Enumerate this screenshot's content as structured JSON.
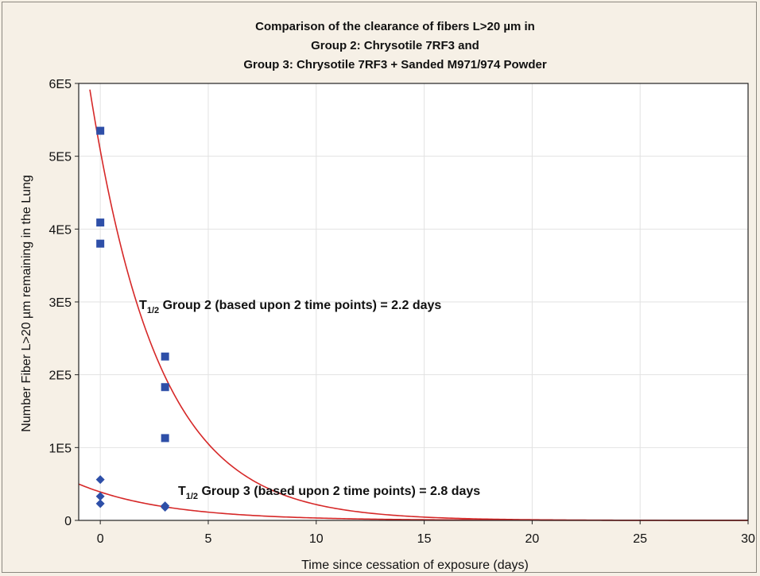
{
  "chart_data": {
    "type": "scatter",
    "title_lines": [
      "Comparison of the clearance of fibers L>20 µm in",
      "Group 2: Chrysotile 7RF3 and",
      "Group 3: Chrysotile 7RF3 + Sanded M971/974 Powder"
    ],
    "xlabel": "Time since cessation of exposure (days)",
    "ylabel": "Number Fiber L>20 µm remaining in the Lung",
    "xlim": [
      -1,
      30
    ],
    "ylim": [
      0,
      600000
    ],
    "x_ticks": [
      0,
      5,
      10,
      15,
      20,
      25,
      30
    ],
    "x_tick_labels": [
      "0",
      "5",
      "10",
      "15",
      "20",
      "25",
      "30"
    ],
    "y_ticks": [
      0,
      100000,
      200000,
      300000,
      400000,
      500000,
      600000
    ],
    "y_tick_labels": [
      "0",
      "1E5",
      "2E5",
      "3E5",
      "4E5",
      "5E5",
      "6E5"
    ],
    "grid": true,
    "series": [
      {
        "marker": "square",
        "color": "#2e4fa8",
        "x": [
          0,
          0,
          0,
          3,
          3,
          3
        ],
        "y": [
          535000,
          409000,
          380000,
          225000,
          183000,
          113000
        ]
      },
      {
        "marker": "diamond",
        "color": "#2e4fa8",
        "x": [
          0,
          0,
          0,
          3,
          3
        ],
        "y": [
          56000,
          33000,
          23000,
          20000,
          18000
        ]
      }
    ],
    "fits": [
      {
        "model": "exponential",
        "color": "#d62828",
        "a": 508000,
        "half_life": 2.2
      },
      {
        "model": "exponential",
        "color": "#d62828",
        "a": 39000,
        "half_life": 2.8
      }
    ],
    "annotations": [
      {
        "prefix": "T",
        "sub": "1/2",
        "text": " Group 2 (based upon 2 time points) = 2.2 days",
        "x": 1.8,
        "y": 290000
      },
      {
        "prefix": "T",
        "sub": "1/2",
        "text": " Group 3 (based upon 2 time points) = 2.8 days",
        "x": 3.6,
        "y": 35000
      }
    ]
  }
}
